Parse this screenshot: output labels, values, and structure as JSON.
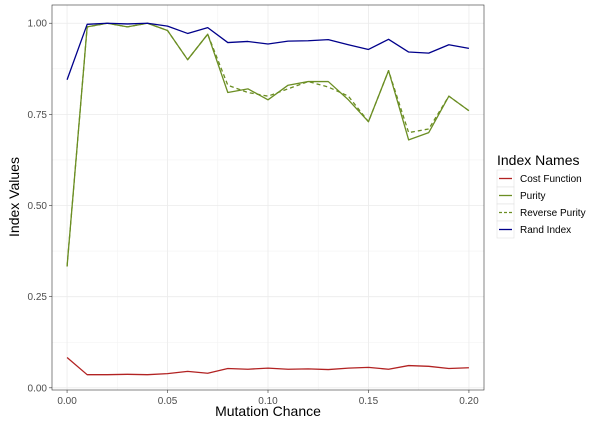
{
  "chart_data": {
    "type": "line",
    "title": "",
    "xlabel": "Mutation Chance",
    "ylabel": "Index Values",
    "xlim": [
      -0.0075,
      0.2075
    ],
    "ylim": [
      -0.006,
      1.05
    ],
    "x_ticks": [
      0.0,
      0.05,
      0.1,
      0.15,
      0.2
    ],
    "x_tick_labels": [
      "0.00",
      "0.05",
      "0.10",
      "0.15",
      "0.20"
    ],
    "y_ticks": [
      0.0,
      0.25,
      0.5,
      0.75,
      1.0
    ],
    "y_tick_labels": [
      "0.00",
      "0.25",
      "0.50",
      "0.75",
      "1.00"
    ],
    "grid": true,
    "legend": {
      "title": "Index Names",
      "position": "right"
    },
    "x": [
      0.0,
      0.01,
      0.02,
      0.03,
      0.04,
      0.05,
      0.06,
      0.07,
      0.08,
      0.09,
      0.1,
      0.11,
      0.12,
      0.13,
      0.14,
      0.15,
      0.16,
      0.17,
      0.18,
      0.19,
      0.2
    ],
    "series": [
      {
        "name": "Cost Function",
        "color": "#b22222",
        "dash": "solid",
        "values": [
          0.083,
          0.036,
          0.036,
          0.037,
          0.036,
          0.039,
          0.045,
          0.04,
          0.053,
          0.051,
          0.054,
          0.051,
          0.052,
          0.05,
          0.054,
          0.056,
          0.051,
          0.061,
          0.059,
          0.053,
          0.055
        ]
      },
      {
        "name": "Purity",
        "color": "#6b8e23",
        "dash": "solid",
        "values": [
          0.333,
          0.99,
          1.0,
          0.99,
          1.0,
          0.98,
          0.9,
          0.97,
          0.81,
          0.82,
          0.79,
          0.83,
          0.84,
          0.84,
          0.79,
          0.73,
          0.87,
          0.68,
          0.7,
          0.8,
          0.76
        ]
      },
      {
        "name": "Reverse Purity",
        "color": "#6b8e23",
        "dash": "dashed",
        "values": [
          0.333,
          0.99,
          1.0,
          0.99,
          1.0,
          0.98,
          0.9,
          0.97,
          0.83,
          0.81,
          0.8,
          0.82,
          0.84,
          0.825,
          0.8,
          0.73,
          0.87,
          0.7,
          0.71,
          0.8,
          0.76
        ]
      },
      {
        "name": "Rand Index",
        "color": "#00008b",
        "dash": "solid",
        "values": [
          0.845,
          0.997,
          1.0,
          0.998,
          1.0,
          0.992,
          0.972,
          0.988,
          0.947,
          0.95,
          0.943,
          0.951,
          0.952,
          0.955,
          0.941,
          0.928,
          0.956,
          0.921,
          0.918,
          0.941,
          0.931
        ]
      }
    ]
  }
}
